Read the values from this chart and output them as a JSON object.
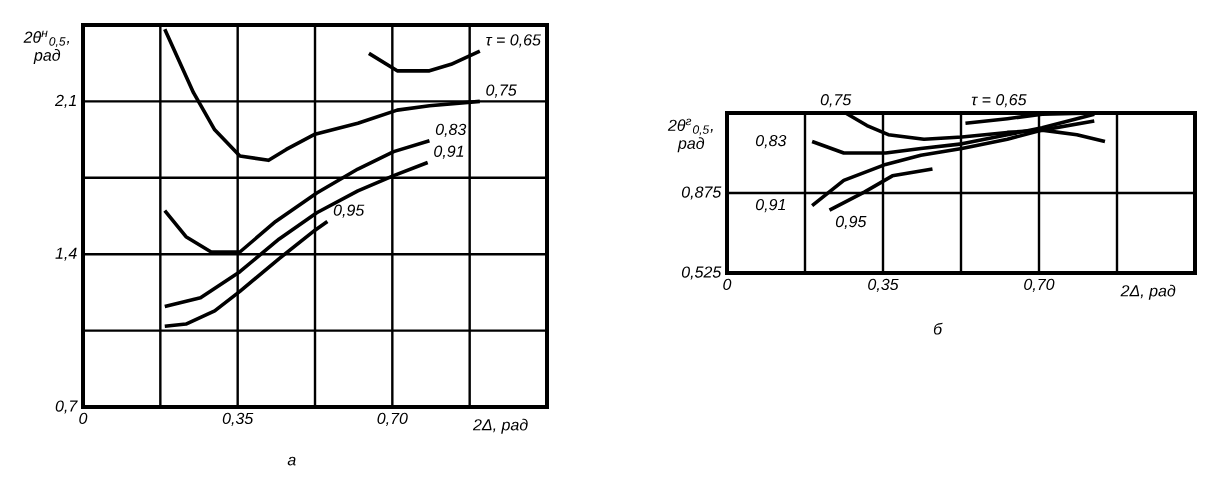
{
  "chart_data": [
    {
      "type": "line",
      "ylabel": "2θ$^{н}$$_{0,5}$, рад",
      "xlabel": "2Δ, рад",
      "annotations": [
        "а"
      ],
      "xlim": [
        0,
        1.05
      ],
      "ylim": [
        0.7,
        2.45
      ],
      "xticks": [
        {
          "value": 0,
          "label": "0"
        },
        {
          "value": 0.175,
          "label": null
        },
        {
          "value": 0.35,
          "label": "0,35"
        },
        {
          "value": 0.525,
          "label": null
        },
        {
          "value": 0.7,
          "label": "0,70"
        },
        {
          "value": 0.875,
          "label": null
        },
        {
          "value": 1.05,
          "label": null
        }
      ],
      "yticks": [
        {
          "value": 0.7,
          "label": "0,7"
        },
        {
          "value": 1.05,
          "label": null
        },
        {
          "value": 1.4,
          "label": "1,4"
        },
        {
          "value": 1.75,
          "label": null
        },
        {
          "value": 2.1,
          "label": "2,1"
        },
        {
          "value": 2.45,
          "label": null
        }
      ],
      "grid": true,
      "marker": "none",
      "line_style": "solid",
      "series": [
        {
          "name": "τ = 0,65",
          "color": "#000000",
          "x": [
            0.647,
            0.711,
            0.784,
            0.833,
            0.898
          ],
          "values": [
            2.32,
            2.24,
            2.24,
            2.27,
            2.33
          ]
        },
        {
          "name": "0,75",
          "color": "#000000",
          "x": [
            0.185,
            0.25,
            0.298,
            0.355,
            0.42,
            0.46,
            0.525,
            0.622,
            0.711,
            0.784,
            0.898
          ],
          "values": [
            2.43,
            2.14,
            1.97,
            1.85,
            1.83,
            1.88,
            1.95,
            2.0,
            2.06,
            2.08,
            2.1
          ]
        },
        {
          "name": "0,83",
          "color": "#000000",
          "x": [
            0.185,
            0.233,
            0.29,
            0.355,
            0.436,
            0.529,
            0.622,
            0.703,
            0.784
          ],
          "values": [
            1.6,
            1.48,
            1.41,
            1.41,
            1.55,
            1.68,
            1.79,
            1.87,
            1.92
          ]
        },
        {
          "name": "0,91",
          "color": "#000000",
          "x": [
            0.185,
            0.266,
            0.355,
            0.444,
            0.529,
            0.622,
            0.703,
            0.78
          ],
          "values": [
            1.16,
            1.2,
            1.32,
            1.47,
            1.59,
            1.69,
            1.76,
            1.82
          ]
        },
        {
          "name": "0,95",
          "color": "#000000",
          "x": [
            0.185,
            0.233,
            0.298,
            0.355,
            0.444,
            0.525,
            0.553
          ],
          "values": [
            1.07,
            1.08,
            1.14,
            1.23,
            1.38,
            1.51,
            1.55
          ]
        }
      ]
    },
    {
      "type": "line",
      "ylabel": "2θ$^{г}$$_{0,5}$, рад",
      "xlabel": "2Δ, рад",
      "annotations": [
        "б"
      ],
      "xlim": [
        0,
        1.05
      ],
      "ylim": [
        0.525,
        1.225
      ],
      "xticks": [
        {
          "value": 0,
          "label": "0"
        },
        {
          "value": 0.175,
          "label": null
        },
        {
          "value": 0.35,
          "label": "0,35"
        },
        {
          "value": 0.525,
          "label": null
        },
        {
          "value": 0.7,
          "label": "0,70"
        },
        {
          "value": 0.875,
          "label": null
        },
        {
          "value": 1.05,
          "label": null
        }
      ],
      "yticks": [
        {
          "value": 0.525,
          "label": "0,525"
        },
        {
          "value": 0.875,
          "label": "0,875"
        },
        {
          "value": 1.225,
          "label": null
        }
      ],
      "grid": true,
      "marker": "none",
      "line_style": "solid",
      "series": [
        {
          "name": "τ = 0,65",
          "color": "#000000",
          "x": [
            0.535,
            0.629,
            0.707,
            0.824
          ],
          "values": [
            1.18,
            1.2,
            1.22,
            1.225
          ]
        },
        {
          "name": "0,75",
          "color": "#000000",
          "x": [
            0.266,
            0.314,
            0.362,
            0.442,
            0.527,
            0.629,
            0.707,
            0.785,
            0.848
          ],
          "values": [
            1.225,
            1.17,
            1.13,
            1.11,
            1.12,
            1.14,
            1.15,
            1.13,
            1.1
          ]
        },
        {
          "name": "0,83",
          "color": "#000000",
          "x": [
            0.191,
            0.262,
            0.356,
            0.435,
            0.527,
            0.629,
            0.707,
            0.824
          ],
          "values": [
            1.1,
            1.05,
            1.05,
            1.07,
            1.09,
            1.13,
            1.16,
            1.22
          ]
        },
        {
          "name": "0,91",
          "color": "#000000",
          "x": [
            0.191,
            0.262,
            0.356,
            0.435,
            0.527,
            0.629,
            0.707,
            0.824
          ],
          "values": [
            0.82,
            0.93,
            1.0,
            1.04,
            1.07,
            1.11,
            1.15,
            1.19
          ]
        },
        {
          "name": "0,95",
          "color": "#000000",
          "x": [
            0.23,
            0.309,
            0.371,
            0.461
          ],
          "values": [
            0.8,
            0.88,
            0.95,
            0.98
          ]
        }
      ]
    }
  ]
}
